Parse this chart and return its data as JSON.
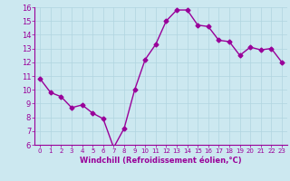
{
  "x": [
    0,
    1,
    2,
    3,
    4,
    5,
    6,
    7,
    8,
    9,
    10,
    11,
    12,
    13,
    14,
    15,
    16,
    17,
    18,
    19,
    20,
    21,
    22,
    23
  ],
  "y": [
    10.8,
    9.8,
    9.5,
    8.7,
    8.9,
    8.3,
    7.9,
    5.8,
    7.2,
    10.0,
    12.2,
    13.3,
    15.0,
    15.8,
    15.8,
    14.7,
    14.6,
    13.6,
    13.5,
    12.5,
    13.1,
    12.9,
    13.0,
    12.0
  ],
  "line_color": "#990099",
  "marker": "D",
  "marker_size": 2.5,
  "bg_color": "#cce8f0",
  "grid_color": "#b0d4e0",
  "xlabel": "Windchill (Refroidissement éolien,°C)",
  "xlabel_color": "#990099",
  "tick_color": "#990099",
  "spine_color": "#990099",
  "ylim": [
    6,
    16
  ],
  "xlim": [
    -0.5,
    23.5
  ],
  "yticks": [
    6,
    7,
    8,
    9,
    10,
    11,
    12,
    13,
    14,
    15,
    16
  ],
  "xticks": [
    0,
    1,
    2,
    3,
    4,
    5,
    6,
    7,
    8,
    9,
    10,
    11,
    12,
    13,
    14,
    15,
    16,
    17,
    18,
    19,
    20,
    21,
    22,
    23
  ],
  "ytick_fontsize": 6.0,
  "xtick_fontsize": 5.0,
  "xlabel_fontsize": 6.0,
  "linewidth": 1.0
}
